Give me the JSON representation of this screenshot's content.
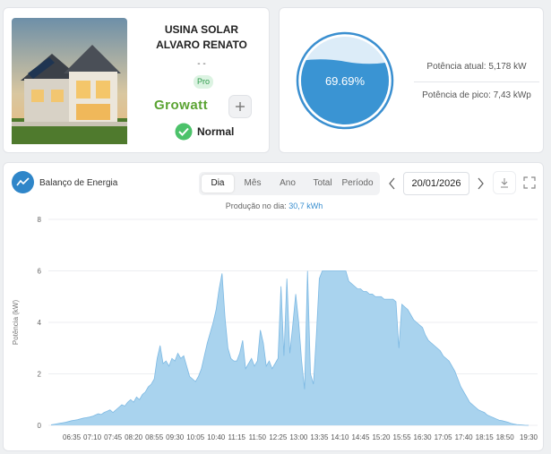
{
  "plant": {
    "name": "USINA SOLAR ALVARO RENATO",
    "subtitle": "- -",
    "badge": "Pro",
    "brand": "Growatt",
    "status": "Normal"
  },
  "gauge": {
    "value": 69.69,
    "label": "69.69%",
    "current_power": "Potência atual: 5,178 kW",
    "peak_power": "Potência de pico: 7,43 kWp"
  },
  "energy_panel": {
    "title": "Balanço de Energia",
    "tabs": [
      "Dia",
      "Mês",
      "Ano",
      "Total",
      "Período"
    ],
    "selected_tab": "Dia",
    "date": "20/01/2026",
    "production_label": "Produção no dia:",
    "production_value": "30,7 kWh"
  },
  "chart_data": {
    "type": "area",
    "y_label": "Potência (kW)",
    "color": "#a9d3ee",
    "line_color": "#7db9e3",
    "grid": true,
    "ylim": [
      0,
      8
    ],
    "yticks": [
      0,
      2,
      4,
      6,
      8
    ],
    "categories": [
      null,
      null,
      null,
      null,
      null,
      null,
      null,
      "06:35",
      null,
      null,
      null,
      null,
      null,
      null,
      "07:10",
      null,
      null,
      null,
      null,
      null,
      null,
      "07:45",
      null,
      null,
      null,
      null,
      null,
      null,
      "08:20",
      null,
      null,
      null,
      null,
      null,
      null,
      "08:55",
      null,
      null,
      null,
      null,
      null,
      null,
      "09:30",
      null,
      null,
      null,
      null,
      null,
      null,
      "10:05",
      null,
      null,
      null,
      null,
      null,
      null,
      "10:40",
      null,
      null,
      null,
      null,
      null,
      null,
      "11:15",
      null,
      null,
      null,
      null,
      null,
      null,
      "11:50",
      null,
      null,
      null,
      null,
      null,
      null,
      "12:25",
      null,
      null,
      null,
      null,
      null,
      null,
      "13:00",
      null,
      null,
      null,
      null,
      null,
      null,
      "13:35",
      null,
      null,
      null,
      null,
      null,
      null,
      "14:10",
      null,
      null,
      null,
      null,
      null,
      null,
      "14:45",
      null,
      null,
      null,
      null,
      null,
      null,
      "15:20",
      null,
      null,
      null,
      null,
      null,
      null,
      "15:55",
      null,
      null,
      null,
      null,
      null,
      null,
      "16:30",
      null,
      null,
      null,
      null,
      null,
      null,
      "17:05",
      null,
      null,
      null,
      null,
      null,
      null,
      "17:40",
      null,
      null,
      null,
      null,
      null,
      null,
      "18:15",
      null,
      null,
      null,
      null,
      null,
      null,
      "18:50",
      null,
      null,
      null,
      null,
      null,
      null,
      null,
      "19:30"
    ],
    "values": [
      0.02,
      0.04,
      0.06,
      0.08,
      0.1,
      0.12,
      0.15,
      0.18,
      0.2,
      0.22,
      0.25,
      0.28,
      0.3,
      0.32,
      0.35,
      0.4,
      0.45,
      0.42,
      0.5,
      0.55,
      0.6,
      0.5,
      0.6,
      0.7,
      0.8,
      0.75,
      0.9,
      1.0,
      0.9,
      1.1,
      1.0,
      1.2,
      1.3,
      1.5,
      1.6,
      1.8,
      2.6,
      3.1,
      2.4,
      2.5,
      2.3,
      2.6,
      2.5,
      2.8,
      2.6,
      2.7,
      2.3,
      1.9,
      1.8,
      1.7,
      1.9,
      2.2,
      2.7,
      3.2,
      3.6,
      4.0,
      4.5,
      5.3,
      5.9,
      4.2,
      3.0,
      2.6,
      2.5,
      2.5,
      2.8,
      3.3,
      2.2,
      2.4,
      2.6,
      2.3,
      2.5,
      3.7,
      3.2,
      2.3,
      2.5,
      2.2,
      2.4,
      2.6,
      5.4,
      2.7,
      5.7,
      2.8,
      3.9,
      5.1,
      4.0,
      2.5,
      1.4,
      6.0,
      2.0,
      1.6,
      3.5,
      5.7,
      6.0,
      6.0,
      6.0,
      6.0,
      6.0,
      6.0,
      6.0,
      6.0,
      6.0,
      5.6,
      5.5,
      5.4,
      5.3,
      5.3,
      5.2,
      5.2,
      5.1,
      5.1,
      5.0,
      5.0,
      5.0,
      4.9,
      4.9,
      4.9,
      4.9,
      4.8,
      3.0,
      4.7,
      4.6,
      4.5,
      4.3,
      4.1,
      4.0,
      3.9,
      3.8,
      3.5,
      3.3,
      3.2,
      3.1,
      3.0,
      2.9,
      2.7,
      2.6,
      2.5,
      2.3,
      2.1,
      1.8,
      1.5,
      1.3,
      1.1,
      0.9,
      0.8,
      0.7,
      0.6,
      0.55,
      0.5,
      0.4,
      0.35,
      0.3,
      0.25,
      0.2,
      0.18,
      0.15,
      0.12,
      0.08,
      0.05,
      0.03,
      0.02,
      0.01,
      0,
      0
    ]
  }
}
